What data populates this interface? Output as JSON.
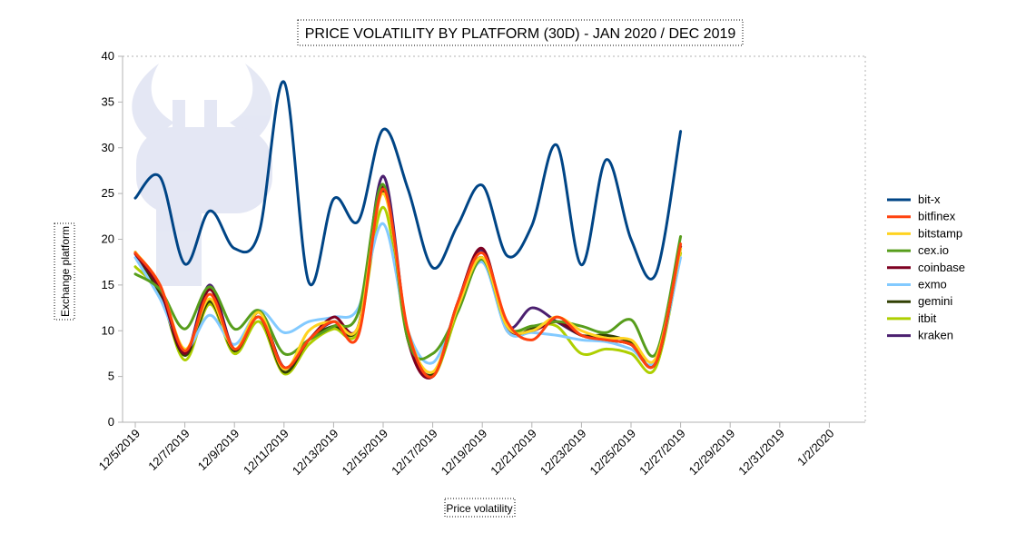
{
  "chart_data": {
    "type": "line",
    "title": "PRICE VOLATILITY BY PLATFORM (30D) - JAN 2020 / DEC 2019",
    "xlabel": "Price volatility",
    "ylabel": "Exchange platform",
    "ylim": [
      0,
      40
    ],
    "yticks": [
      0,
      5,
      10,
      15,
      20,
      25,
      30,
      35,
      40
    ],
    "x": [
      "12/5/2019",
      "12/6/2019",
      "12/7/2019",
      "12/8/2019",
      "12/9/2019",
      "12/10/2019",
      "12/11/2019",
      "12/12/2019",
      "12/13/2019",
      "12/14/2019",
      "12/15/2019",
      "12/16/2019",
      "12/17/2019",
      "12/18/2019",
      "12/19/2019",
      "12/20/2019",
      "12/21/2019",
      "12/22/2019",
      "12/23/2019",
      "12/24/2019",
      "12/25/2019",
      "12/26/2019",
      "12/27/2019",
      "12/28/2019",
      "12/29/2019",
      "12/30/2019",
      "12/31/2019",
      "1/1/2020",
      "1/2/2020",
      "1/3/2020"
    ],
    "x_tick_labels": [
      "12/5/2019",
      "12/7/2019",
      "12/9/2019",
      "12/11/2019",
      "12/13/2019",
      "12/15/2019",
      "12/17/2019",
      "12/19/2019",
      "12/21/2019",
      "12/23/2019",
      "12/25/2019",
      "12/27/2019",
      "12/29/2019",
      "12/31/2019",
      "1/2/2020"
    ],
    "grid": false,
    "legend_position": "right",
    "series": [
      {
        "name": "bit-x",
        "color": "#004586",
        "values": [
          24.5,
          26.8,
          17.3,
          23.1,
          19.0,
          20.8,
          37.2,
          15.3,
          24.4,
          22.0,
          32.0,
          25.5,
          16.9,
          21.5,
          25.9,
          18.2,
          21.5,
          30.3,
          17.2,
          28.7,
          20.0,
          16.2,
          31.8,
          null,
          null,
          null,
          null,
          null,
          null,
          null
        ]
      },
      {
        "name": "bitfinex",
        "color": "#ff420e",
        "values": [
          18.5,
          15.0,
          7.8,
          14.0,
          8.0,
          11.5,
          6.0,
          9.0,
          11.0,
          9.5,
          25.5,
          10.0,
          5.0,
          13.0,
          18.5,
          11.0,
          9.0,
          11.5,
          9.5,
          9.0,
          8.5,
          6.5,
          19.5,
          null,
          null,
          null,
          null,
          null,
          null,
          null
        ]
      },
      {
        "name": "bitstamp",
        "color": "#ffd320",
        "values": [
          18.6,
          15.0,
          8.0,
          13.5,
          8.0,
          12.0,
          5.8,
          10.0,
          11.0,
          10.5,
          25.0,
          10.0,
          5.5,
          12.5,
          18.0,
          10.5,
          10.0,
          11.5,
          10.0,
          9.2,
          9.0,
          7.0,
          19.0,
          null,
          null,
          null,
          null,
          null,
          null,
          null
        ]
      },
      {
        "name": "cex.io",
        "color": "#579d1c",
        "values": [
          16.2,
          14.5,
          10.2,
          14.8,
          10.2,
          12.2,
          7.5,
          9.0,
          10.5,
          12.0,
          26.0,
          9.0,
          7.5,
          12.0,
          17.8,
          10.5,
          10.5,
          11.0,
          10.5,
          9.8,
          11.2,
          7.5,
          20.3,
          null,
          null,
          null,
          null,
          null,
          null,
          null
        ]
      },
      {
        "name": "coinbase",
        "color": "#7e0021",
        "values": [
          18.4,
          14.5,
          7.5,
          14.5,
          8.0,
          12.0,
          6.0,
          9.0,
          11.5,
          10.5,
          25.8,
          9.0,
          5.0,
          13.0,
          19.0,
          10.5,
          10.0,
          11.0,
          9.5,
          9.0,
          8.5,
          6.5,
          19.2,
          null,
          null,
          null,
          null,
          null,
          null,
          null
        ]
      },
      {
        "name": "exmo",
        "color": "#83caff",
        "values": [
          18.0,
          13.5,
          8.0,
          11.7,
          8.5,
          12.2,
          9.8,
          11.0,
          11.5,
          12.5,
          21.7,
          10.0,
          6.5,
          12.5,
          17.5,
          10.0,
          9.8,
          9.5,
          9.0,
          8.8,
          8.0,
          6.8,
          18.0,
          null,
          null,
          null,
          null,
          null,
          null,
          null
        ]
      },
      {
        "name": "gemini",
        "color": "#314004",
        "values": [
          18.5,
          14.0,
          7.3,
          13.2,
          7.8,
          11.5,
          5.5,
          9.0,
          10.5,
          10.5,
          25.3,
          9.5,
          5.2,
          12.5,
          18.0,
          10.0,
          10.2,
          11.0,
          9.5,
          9.5,
          8.7,
          6.5,
          19.2,
          null,
          null,
          null,
          null,
          null,
          null,
          null
        ]
      },
      {
        "name": "itbit",
        "color": "#aecf00",
        "values": [
          17.0,
          14.0,
          6.8,
          12.9,
          7.5,
          11.0,
          5.3,
          8.5,
          10.2,
          10.0,
          23.5,
          9.0,
          5.0,
          12.0,
          17.8,
          10.3,
          10.5,
          10.5,
          7.5,
          8.0,
          7.5,
          6.0,
          18.5,
          null,
          null,
          null,
          null,
          null,
          null,
          null
        ]
      },
      {
        "name": "kraken",
        "color": "#4b1f6f",
        "values": [
          18.6,
          14.5,
          7.5,
          15.0,
          8.0,
          12.0,
          6.0,
          9.0,
          11.0,
          10.5,
          26.9,
          9.5,
          5.0,
          13.0,
          18.8,
          10.5,
          12.5,
          11.0,
          9.5,
          9.0,
          8.5,
          6.5,
          19.0,
          null,
          null,
          null,
          null,
          null,
          null,
          null
        ]
      }
    ]
  }
}
